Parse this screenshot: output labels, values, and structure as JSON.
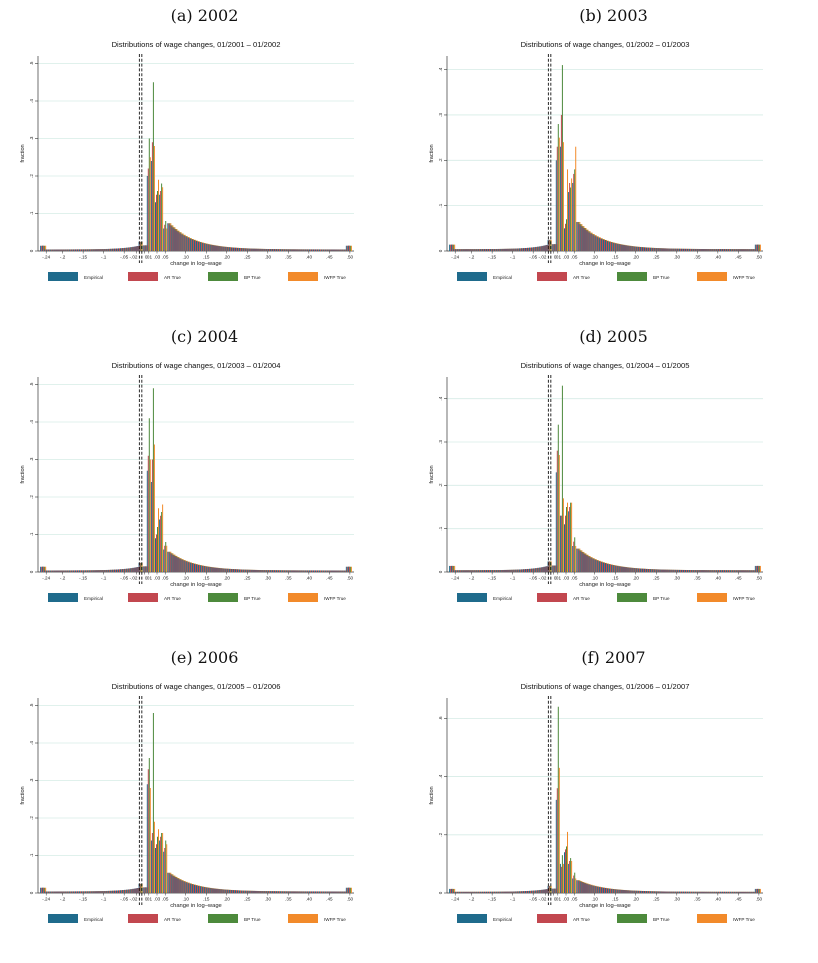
{
  "colors": {
    "empirical": "#1f6b8c",
    "ar": "#c2474f",
    "bp": "#4d8a3c",
    "iwfp": "#f28a2a",
    "grid": "#d6ece6"
  },
  "legend": [
    "Empirical",
    "AR True",
    "BP True",
    "IWFP True"
  ],
  "common": {
    "ylabel": "fraction",
    "xlabel": "change in log–wage",
    "xticks": [
      "-.24",
      "-.2",
      "-.15",
      "-.1",
      "-.05",
      "-.02",
      "0",
      ".01",
      ".03",
      ".05",
      ".10",
      ".15",
      ".20",
      ".25",
      ".30",
      ".35",
      ".40",
      ".45",
      ".50"
    ]
  },
  "chart_data": [
    {
      "type": "bar",
      "caption": "(a) 2002",
      "title": "Distributions of wage changes, 01/2001 – 01/2002",
      "ylim": [
        0,
        0.52
      ],
      "yticks": [
        "0",
        ".1",
        ".2",
        ".3",
        ".4",
        ".5"
      ],
      "spikes": {
        "x": [
          0.01,
          0.02,
          0.03,
          0.04,
          0.05
        ],
        "empirical": [
          0.2,
          0.24,
          0.13,
          0.15,
          0.06
        ],
        "ar": [
          0.22,
          0.29,
          0.15,
          0.16,
          0.07
        ],
        "bp": [
          0.3,
          0.45,
          0.16,
          0.18,
          0.08
        ],
        "iwfp": [
          0.25,
          0.28,
          0.19,
          0.17,
          0.06
        ]
      },
      "tail": {
        "x0": 0.06,
        "y0": 0.07
      }
    },
    {
      "type": "bar",
      "caption": "(b) 2003",
      "title": "Distributions of wage changes, 01/2002 – 01/2003",
      "ylim": [
        0,
        0.43
      ],
      "yticks": [
        "0",
        ".1",
        ".2",
        ".3",
        ".4"
      ],
      "spikes": {
        "x": [
          0.01,
          0.02,
          0.03,
          0.04,
          0.05
        ],
        "empirical": [
          0.2,
          0.23,
          0.05,
          0.13,
          0.15
        ],
        "ar": [
          0.23,
          0.3,
          0.06,
          0.15,
          0.17
        ],
        "bp": [
          0.28,
          0.41,
          0.07,
          0.14,
          0.18
        ],
        "iwfp": [
          0.25,
          0.24,
          0.18,
          0.16,
          0.23
        ]
      },
      "tail": {
        "x0": 0.06,
        "y0": 0.06
      }
    },
    {
      "type": "bar",
      "caption": "(c) 2004",
      "title": "Distributions of wage changes, 01/2003 – 01/2004",
      "ylim": [
        0,
        0.52
      ],
      "yticks": [
        "0",
        ".1",
        ".2",
        ".3",
        ".4",
        ".5"
      ],
      "spikes": {
        "x": [
          0.01,
          0.02,
          0.03,
          0.04,
          0.05
        ],
        "empirical": [
          0.27,
          0.24,
          0.09,
          0.14,
          0.06
        ],
        "ar": [
          0.31,
          0.3,
          0.1,
          0.15,
          0.07
        ],
        "bp": [
          0.41,
          0.49,
          0.12,
          0.16,
          0.08
        ],
        "iwfp": [
          0.3,
          0.34,
          0.17,
          0.18,
          0.07
        ]
      },
      "tail": {
        "x0": 0.06,
        "y0": 0.05
      }
    },
    {
      "type": "bar",
      "caption": "(d) 2005",
      "title": "Distributions of wage changes, 01/2004 – 01/2005",
      "ylim": [
        0,
        0.45
      ],
      "yticks": [
        "0",
        ".1",
        ".2",
        ".3",
        ".4"
      ],
      "spikes": {
        "x": [
          0.01,
          0.02,
          0.03,
          0.04,
          0.05
        ],
        "empirical": [
          0.23,
          0.13,
          0.11,
          0.14,
          0.06
        ],
        "ar": [
          0.28,
          0.13,
          0.13,
          0.15,
          0.07
        ],
        "bp": [
          0.34,
          0.43,
          0.15,
          0.16,
          0.08
        ],
        "iwfp": [
          0.27,
          0.17,
          0.16,
          0.16,
          0.06
        ]
      },
      "tail": {
        "x0": 0.06,
        "y0": 0.05
      }
    },
    {
      "type": "bar",
      "caption": "(e) 2006",
      "title": "Distributions of wage changes, 01/2005 – 01/2006",
      "ylim": [
        0,
        0.52
      ],
      "yticks": [
        "0",
        ".1",
        ".2",
        ".3",
        ".4",
        ".5"
      ],
      "spikes": {
        "x": [
          0.01,
          0.02,
          0.03,
          0.04,
          0.05
        ],
        "empirical": [
          0.29,
          0.14,
          0.12,
          0.14,
          0.11
        ],
        "ar": [
          0.33,
          0.16,
          0.13,
          0.15,
          0.12
        ],
        "bp": [
          0.36,
          0.48,
          0.15,
          0.16,
          0.14
        ],
        "iwfp": [
          0.28,
          0.19,
          0.17,
          0.16,
          0.13
        ]
      },
      "tail": {
        "x0": 0.06,
        "y0": 0.05
      }
    },
    {
      "type": "bar",
      "caption": "(f) 2007",
      "title": "Distributions of wage changes, 01/2006 – 01/2007",
      "ylim": [
        0,
        0.67
      ],
      "yticks": [
        "0",
        ".2",
        ".4",
        ".6"
      ],
      "spikes": {
        "x": [
          0.01,
          0.02,
          0.03,
          0.04,
          0.05
        ],
        "empirical": [
          0.32,
          0.1,
          0.14,
          0.1,
          0.05
        ],
        "ar": [
          0.36,
          0.09,
          0.15,
          0.11,
          0.06
        ],
        "bp": [
          0.64,
          0.13,
          0.16,
          0.12,
          0.07
        ],
        "iwfp": [
          0.43,
          0.1,
          0.21,
          0.11,
          0.05
        ]
      },
      "tail": {
        "x0": 0.06,
        "y0": 0.04
      }
    }
  ]
}
